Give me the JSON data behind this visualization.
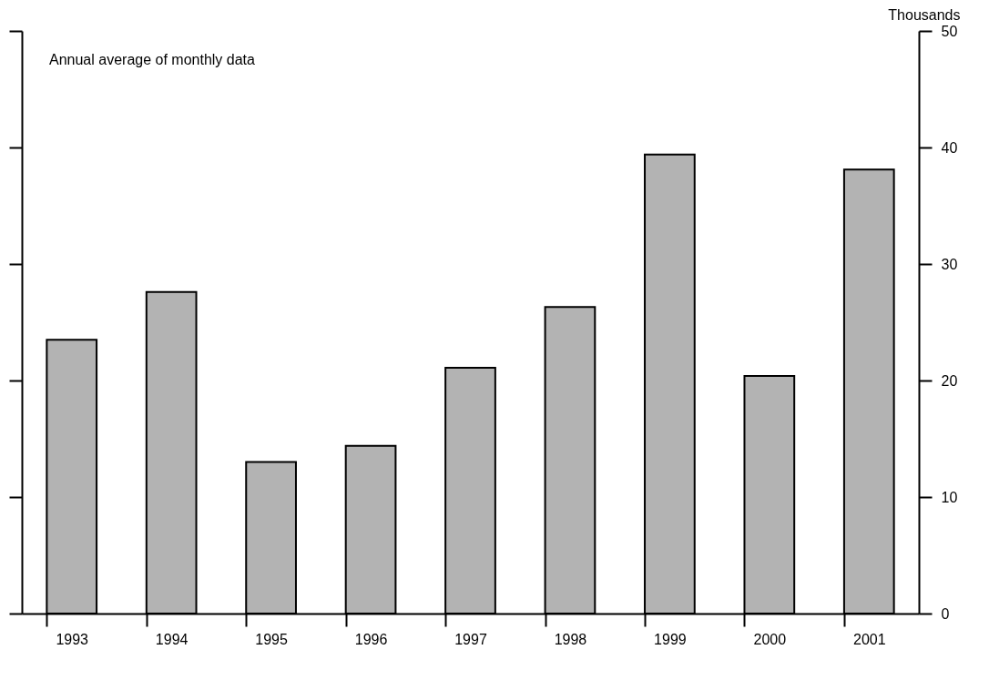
{
  "chart_data": {
    "type": "bar",
    "ylabel": "Thousands",
    "annotations": [
      "Annual average of monthly data"
    ],
    "categories": [
      "1993",
      "1994",
      "1995",
      "1996",
      "1997",
      "1998",
      "1999",
      "2000",
      "2001"
    ],
    "values": [
      23.5,
      27.6,
      13.0,
      14.4,
      21.1,
      26.3,
      39.4,
      20.4,
      38.1
    ],
    "color": "#b3b3b3",
    "ylim": [
      0,
      50
    ],
    "yticks": [
      0,
      10,
      20,
      30,
      40,
      50
    ],
    "grid": false
  }
}
